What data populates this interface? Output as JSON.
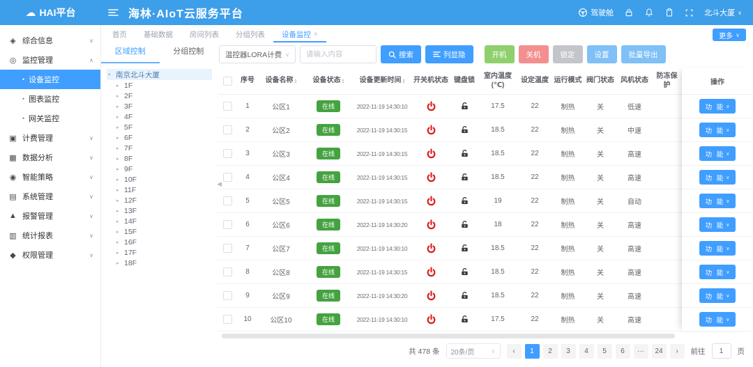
{
  "header": {
    "logo_text": "HAI平台",
    "title": "海林·AIoT云服务平台",
    "cockpit_label": "驾驶舱",
    "building_label": "北斗大厦"
  },
  "tabs": {
    "items": [
      "首页",
      "基础数据",
      "房间列表",
      "分组列表"
    ],
    "active": "设备监控",
    "more_label": "更多"
  },
  "sidebar": {
    "items": [
      {
        "label": "综合信息",
        "icon": "overview",
        "state": "collapsed"
      },
      {
        "label": "监控管理",
        "icon": "monitor",
        "state": "expanded",
        "children": [
          {
            "label": "设备监控",
            "active": true
          },
          {
            "label": "图表监控",
            "active": false
          },
          {
            "label": "网关监控",
            "active": false
          }
        ]
      },
      {
        "label": "计费管理",
        "icon": "billing",
        "state": "collapsed"
      },
      {
        "label": "数据分析",
        "icon": "analytics",
        "state": "collapsed"
      },
      {
        "label": "智能策略",
        "icon": "strategy",
        "state": "collapsed"
      },
      {
        "label": "系统管理",
        "icon": "system",
        "state": "collapsed"
      },
      {
        "label": "报警管理",
        "icon": "alarm",
        "state": "collapsed"
      },
      {
        "label": "统计报表",
        "icon": "report",
        "state": "collapsed"
      },
      {
        "label": "权限管理",
        "icon": "permission",
        "state": "collapsed"
      }
    ]
  },
  "panel": {
    "tabs": [
      "区域控制",
      "分组控制"
    ],
    "active_tab": "区域控制",
    "tree": {
      "root": "南京北斗大厦",
      "floors": [
        "1F",
        "2F",
        "3F",
        "4F",
        "5F",
        "6F",
        "7F",
        "8F",
        "9F",
        "10F",
        "11F",
        "12F",
        "13F",
        "14F",
        "15F",
        "16F",
        "17F",
        "18F"
      ]
    }
  },
  "toolbar": {
    "device_type_value": "温控器LORA计费",
    "search_placeholder": "请输入内容",
    "search_label": "搜索",
    "columns_label": "列显隐",
    "action_buttons": [
      {
        "label": "开机",
        "color": "#8fd06d"
      },
      {
        "label": "关机",
        "color": "#f48f8f"
      },
      {
        "label": "锁定",
        "color": "#c3c5cb"
      },
      {
        "label": "设置",
        "color": "#7fc0f7"
      },
      {
        "label": "批量导出",
        "color": "#7fc0f7"
      }
    ]
  },
  "table": {
    "columns": [
      {
        "key": "checkbox",
        "label": "",
        "sortable": false
      },
      {
        "key": "no",
        "label": "序号",
        "sortable": false
      },
      {
        "key": "name",
        "label": "设备名称",
        "sortable": true
      },
      {
        "key": "status",
        "label": "设备状态",
        "sortable": true
      },
      {
        "key": "updated",
        "label": "设备更新时间",
        "sortable": true
      },
      {
        "key": "power",
        "label": "开关机状态",
        "sortable": false
      },
      {
        "key": "keylock",
        "label": "键盘锁",
        "sortable": false
      },
      {
        "key": "room_temp",
        "label": "室内温度(℃)",
        "sortable": false
      },
      {
        "key": "set_temp",
        "label": "设定温度",
        "sortable": false
      },
      {
        "key": "mode",
        "label": "运行模式",
        "sortable": false
      },
      {
        "key": "valve",
        "label": "阀门状态",
        "sortable": false
      },
      {
        "key": "fan",
        "label": "风机状态",
        "sortable": false
      },
      {
        "key": "frost",
        "label": "防冻保护",
        "sortable": false
      },
      {
        "key": "action",
        "label": "操作",
        "sortable": false
      }
    ],
    "status_online_label": "在线",
    "action_button_label": "功 能",
    "rows": [
      {
        "no": "1",
        "name": "公区1",
        "status": "在线",
        "updated": "2022-11-19 14:30:10",
        "power": "on",
        "keylock": "unlocked",
        "room_temp": "17.5",
        "set_temp": "22",
        "mode": "制热",
        "valve": "关",
        "fan": "低速",
        "frost": ""
      },
      {
        "no": "2",
        "name": "公区2",
        "status": "在线",
        "updated": "2022-11-19 14:30:15",
        "power": "on",
        "keylock": "unlocked",
        "room_temp": "18.5",
        "set_temp": "22",
        "mode": "制热",
        "valve": "关",
        "fan": "中速",
        "frost": ""
      },
      {
        "no": "3",
        "name": "公区3",
        "status": "在线",
        "updated": "2022-11-19 14:30:15",
        "power": "on",
        "keylock": "unlocked",
        "room_temp": "18.5",
        "set_temp": "22",
        "mode": "制热",
        "valve": "关",
        "fan": "高速",
        "frost": ""
      },
      {
        "no": "4",
        "name": "公区4",
        "status": "在线",
        "updated": "2022-11-19 14:30:15",
        "power": "on",
        "keylock": "unlocked",
        "room_temp": "18.5",
        "set_temp": "22",
        "mode": "制热",
        "valve": "关",
        "fan": "高速",
        "frost": ""
      },
      {
        "no": "5",
        "name": "公区5",
        "status": "在线",
        "updated": "2022-11-19 14:30:15",
        "power": "on",
        "keylock": "unlocked",
        "room_temp": "19",
        "set_temp": "22",
        "mode": "制热",
        "valve": "关",
        "fan": "自动",
        "frost": ""
      },
      {
        "no": "6",
        "name": "公区6",
        "status": "在线",
        "updated": "2022-11-19 14:30:20",
        "power": "on",
        "keylock": "unlocked",
        "room_temp": "18",
        "set_temp": "22",
        "mode": "制热",
        "valve": "关",
        "fan": "高速",
        "frost": ""
      },
      {
        "no": "7",
        "name": "公区7",
        "status": "在线",
        "updated": "2022-11-19 14:30:10",
        "power": "on",
        "keylock": "unlocked",
        "room_temp": "18.5",
        "set_temp": "22",
        "mode": "制热",
        "valve": "关",
        "fan": "高速",
        "frost": ""
      },
      {
        "no": "8",
        "name": "公区8",
        "status": "在线",
        "updated": "2022-11-19 14:30:15",
        "power": "on",
        "keylock": "unlocked",
        "room_temp": "18.5",
        "set_temp": "22",
        "mode": "制热",
        "valve": "关",
        "fan": "高速",
        "frost": ""
      },
      {
        "no": "9",
        "name": "公区9",
        "status": "在线",
        "updated": "2022-11-19 14:30:20",
        "power": "on",
        "keylock": "unlocked",
        "room_temp": "18.5",
        "set_temp": "22",
        "mode": "制热",
        "valve": "关",
        "fan": "高速",
        "frost": ""
      },
      {
        "no": "10",
        "name": "公区10",
        "status": "在线",
        "updated": "2022-11-19 14:30:10",
        "power": "on",
        "keylock": "unlocked",
        "room_temp": "17.5",
        "set_temp": "22",
        "mode": "制热",
        "valve": "关",
        "fan": "高速",
        "frost": ""
      }
    ]
  },
  "pagination": {
    "total_text": "共 478 条",
    "page_size_value": "20条/页",
    "pages": [
      "1",
      "2",
      "3",
      "4",
      "5",
      "6",
      "···",
      "24"
    ],
    "active_page": "1",
    "goto_label": "前往",
    "goto_value": "1",
    "goto_suffix": "页"
  },
  "colors": {
    "header_bg": "#3D9EE9",
    "accent": "#409EFF",
    "online_badge": "#44a340",
    "power_icon": "#dc1c1c",
    "power_on_btn": "#8fd06d",
    "power_off_btn": "#f48f8f",
    "lock_btn": "#c3c5cb",
    "light_blue_btn": "#7fc0f7"
  }
}
